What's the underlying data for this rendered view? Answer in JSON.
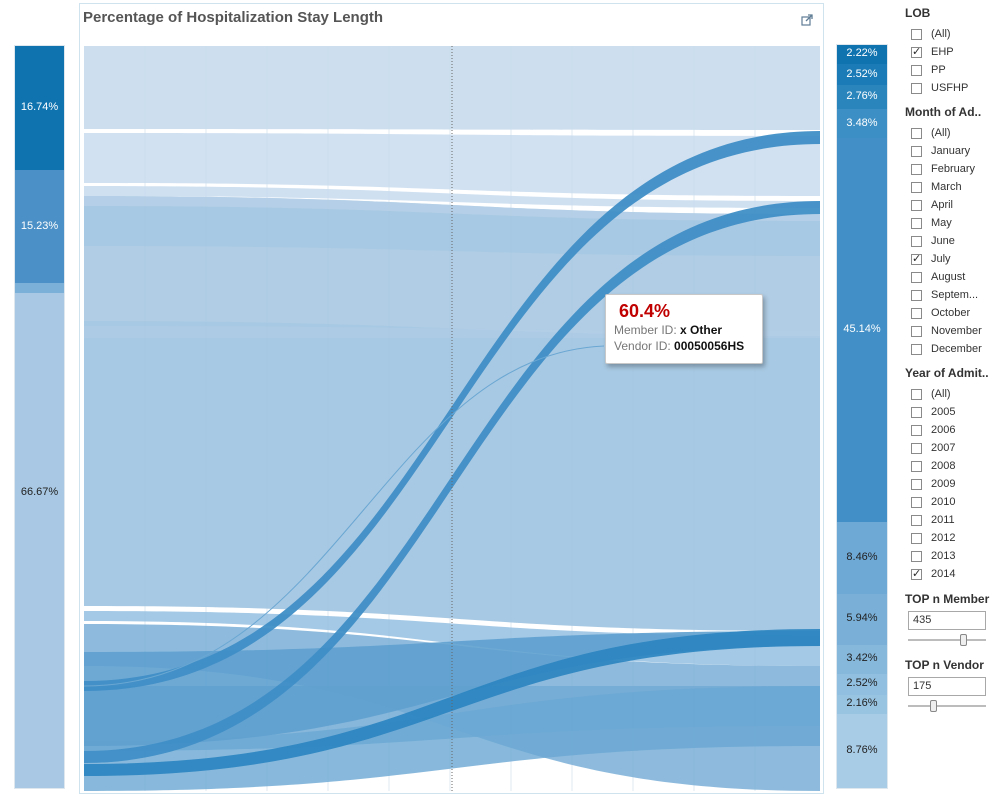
{
  "chart_data": {
    "type": "sankey",
    "title": "Percentage of Hospitalization Stay Length",
    "left_axis": {
      "segments": [
        {
          "value": 16.74,
          "label": "16.74%",
          "color": "#0f73b0"
        },
        {
          "value": 15.23,
          "label": "15.23%",
          "color": "#4b90c6"
        },
        {
          "value": 1.36,
          "label": "",
          "color": "#7bb0d8"
        },
        {
          "value": 66.67,
          "label": "66.67%",
          "color": "#a8c8e3"
        }
      ]
    },
    "right_axis": {
      "segments": [
        {
          "value": 2.22,
          "label": "2.22%",
          "color": "#0f73b0"
        },
        {
          "value": 2.52,
          "label": "2.52%",
          "color": "#1a7bb6"
        },
        {
          "value": 2.76,
          "label": "2.76%",
          "color": "#2a85bd"
        },
        {
          "value": 3.48,
          "label": "3.48%",
          "color": "#3c8fc4"
        },
        {
          "value": 45.14,
          "label": "45.14%",
          "color": "#418fc6"
        },
        {
          "value": 8.46,
          "label": "8.46%",
          "color": "#6ea9d6"
        },
        {
          "value": 5.94,
          "label": "5.94%",
          "color": "#7ab0d8"
        },
        {
          "value": 3.42,
          "label": "3.42%",
          "color": "#86b8dc"
        },
        {
          "value": 2.52,
          "label": "2.52%",
          "color": "#90bfe0"
        },
        {
          "value": 2.16,
          "label": "2.16%",
          "color": "#98c4e2"
        },
        {
          "value": 8.76,
          "label": "8.76%",
          "color": "#a8cbe6"
        }
      ]
    },
    "tooltip": {
      "value": "60.4%",
      "member_label": "Member ID:",
      "member_value": "x Other",
      "vendor_label": "Vendor ID:",
      "vendor_value": "00050056HS"
    }
  },
  "filters": {
    "lob": {
      "title": "LOB",
      "options": [
        {
          "label": "(All)",
          "checked": false
        },
        {
          "label": "EHP",
          "checked": true
        },
        {
          "label": "PP",
          "checked": false
        },
        {
          "label": "USFHP",
          "checked": false
        }
      ]
    },
    "month": {
      "title": "Month of Ad..",
      "options": [
        {
          "label": "(All)",
          "checked": false
        },
        {
          "label": "January",
          "checked": false
        },
        {
          "label": "February",
          "checked": false
        },
        {
          "label": "March",
          "checked": false
        },
        {
          "label": "April",
          "checked": false
        },
        {
          "label": "May",
          "checked": false
        },
        {
          "label": "June",
          "checked": false
        },
        {
          "label": "July",
          "checked": true
        },
        {
          "label": "August",
          "checked": false
        },
        {
          "label": "Septem...",
          "checked": false
        },
        {
          "label": "October",
          "checked": false
        },
        {
          "label": "November",
          "checked": false
        },
        {
          "label": "December",
          "checked": false
        }
      ]
    },
    "year": {
      "title": "Year of Admit..",
      "options": [
        {
          "label": "(All)",
          "checked": false
        },
        {
          "label": "2005",
          "checked": false
        },
        {
          "label": "2006",
          "checked": false
        },
        {
          "label": "2007",
          "checked": false
        },
        {
          "label": "2008",
          "checked": false
        },
        {
          "label": "2009",
          "checked": false
        },
        {
          "label": "2010",
          "checked": false
        },
        {
          "label": "2011",
          "checked": false
        },
        {
          "label": "2012",
          "checked": false
        },
        {
          "label": "2013",
          "checked": false
        },
        {
          "label": "2014",
          "checked": true
        }
      ]
    },
    "top_member": {
      "title": "TOP n Member",
      "value": "435",
      "level": 0.72
    },
    "top_vendor": {
      "title": "TOP n Vendor",
      "value": "175",
      "level": 0.3
    }
  }
}
